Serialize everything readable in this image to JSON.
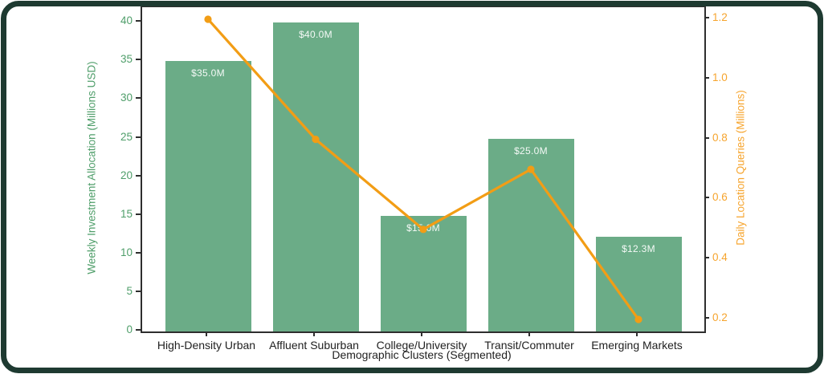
{
  "chart_data": {
    "type": "bar",
    "subtype": "combo-bar-line-dual-axis",
    "categories": [
      "High-Density Urban",
      "Affluent Suburban",
      "College/University",
      "Transit/Commuter",
      "Emerging Markets"
    ],
    "series": [
      {
        "name": "Weekly Investment Allocation",
        "type": "bar",
        "axis": "left",
        "values": [
          35.0,
          40.0,
          15.0,
          25.0,
          12.3
        ],
        "value_labels": [
          "$35.0M",
          "$40.0M",
          "$15.0M",
          "$25.0M",
          "$12.3M"
        ],
        "color": "#6bac87"
      },
      {
        "name": "Daily Location Queries",
        "type": "line",
        "axis": "right",
        "values": [
          1.2,
          0.8,
          0.5,
          0.7,
          0.2
        ],
        "color": "#f29d15",
        "marker": "circle"
      }
    ],
    "title": "",
    "xlabel": "Demographic Clusters (Segmented)",
    "ylabel_left": "Weekly Investment Allocation (Millions USD)",
    "ylabel_right": "Daily Location Queries (Millions)",
    "yticks_left": [
      "0",
      "5",
      "10",
      "15",
      "20",
      "25",
      "30",
      "35",
      "40"
    ],
    "yticks_left_values": [
      0,
      5,
      10,
      15,
      20,
      25,
      30,
      35,
      40
    ],
    "yticks_right": [
      "0.2",
      "0.4",
      "0.6",
      "0.8",
      "1.0",
      "1.2"
    ],
    "yticks_right_values": [
      0.2,
      0.4,
      0.6,
      0.8,
      1.0,
      1.2
    ],
    "ylim_left": [
      0,
      42
    ],
    "ylim_right": [
      0.16,
      1.24
    ],
    "grid": false,
    "legend": "none",
    "colors": {
      "bar_fill": "#6bac87",
      "bar_label_text": "#f4f9f6",
      "line_stroke": "#f29d15",
      "left_axis_text": "#4f9e6a",
      "right_axis_text": "#f6a42d",
      "x_axis_text": "#1f1f1f",
      "spine": "#2e2e2e",
      "frame_border": "#1e3a31",
      "background": "#ffffff"
    }
  }
}
